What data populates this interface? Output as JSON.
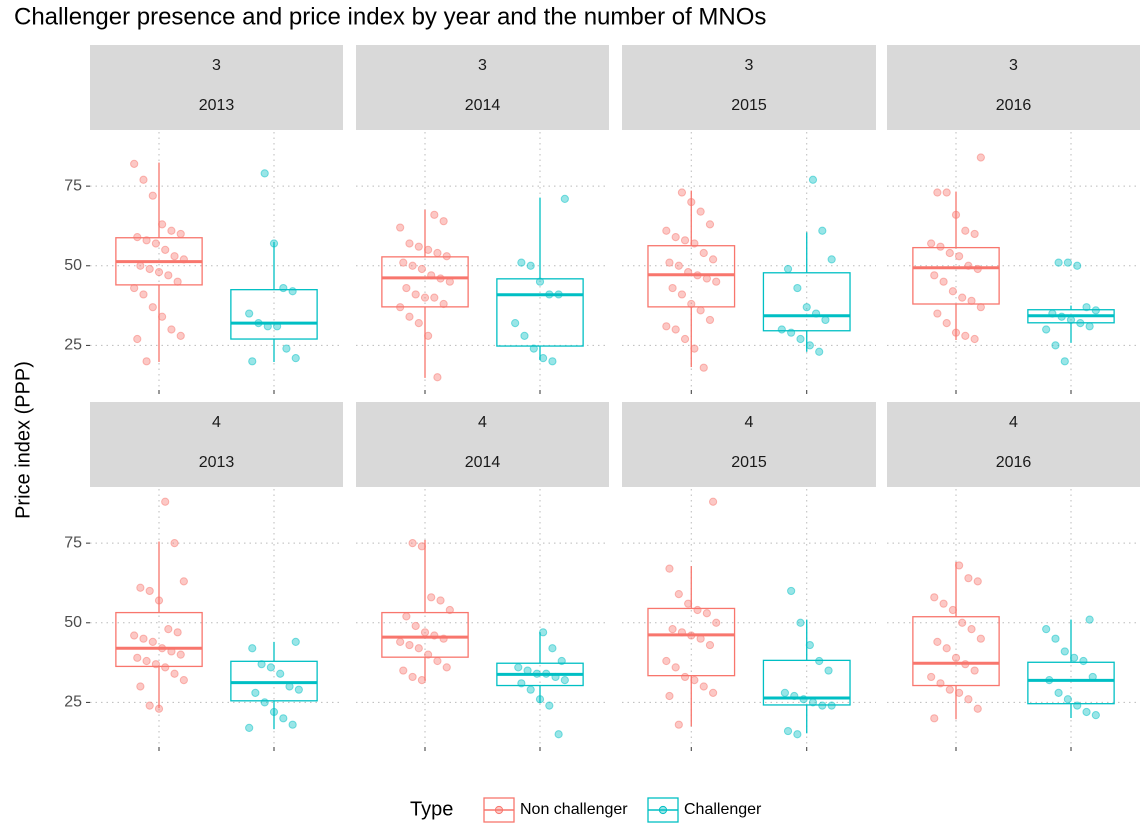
{
  "title": "Challenger presence and price index by year and the number of MNOs",
  "y_label": "Price index (PPP)",
  "legend": {
    "title": "Type",
    "position": "bottom"
  },
  "chart_data": [
    {
      "type": "box",
      "strip": [
        "3",
        "2013"
      ],
      "categories": [
        null,
        null
      ],
      "ylim": [
        11,
        92
      ],
      "yticks": [
        25,
        50,
        75
      ],
      "grid": true,
      "series": [
        {
          "name": "Non challenger",
          "color": "#f8766d",
          "stats": {
            "min": 19.8,
            "q1": 44,
            "median": 51.3,
            "q3": 58.8,
            "max": 82.4
          },
          "points": [
            82,
            77,
            72,
            63,
            61,
            60,
            59,
            58,
            57,
            55,
            53,
            52,
            50,
            49,
            48,
            47,
            45,
            43,
            41,
            37,
            34,
            30,
            28,
            27,
            20
          ]
        },
        {
          "name": "Challenger",
          "color": "#00bfc4",
          "stats": {
            "min": 19.8,
            "q1": 27,
            "median": 32,
            "q3": 42.5,
            "max": 57.5
          },
          "points": [
            79,
            57,
            43,
            42,
            35,
            32,
            31,
            31,
            24,
            21,
            20
          ]
        }
      ]
    },
    {
      "type": "box",
      "strip": [
        "3",
        "2014"
      ],
      "categories": [
        null,
        null
      ],
      "ylim": [
        11,
        92
      ],
      "yticks": [
        25,
        50,
        75
      ],
      "grid": true,
      "series": [
        {
          "name": "Non challenger",
          "color": "#f8766d",
          "stats": {
            "min": 14.8,
            "q1": 37.1,
            "median": 46.2,
            "q3": 52.8,
            "max": 67.6
          },
          "points": [
            66,
            64,
            62,
            57,
            56,
            55,
            54,
            53,
            51,
            50,
            49,
            47,
            46,
            45,
            43,
            41,
            40,
            40,
            38,
            37,
            34,
            32,
            28,
            15
          ]
        },
        {
          "name": "Challenger",
          "color": "#00bfc4",
          "stats": {
            "min": 20.4,
            "q1": 24.8,
            "median": 40.9,
            "q3": 45.9,
            "max": 71.4
          },
          "points": [
            71,
            51,
            50,
            45,
            41,
            41,
            32,
            28,
            24,
            21,
            20
          ]
        }
      ]
    },
    {
      "type": "box",
      "strip": [
        "3",
        "2015"
      ],
      "categories": [
        null,
        null
      ],
      "ylim": [
        11,
        92
      ],
      "yticks": [
        25,
        50,
        75
      ],
      "grid": true,
      "series": [
        {
          "name": "Non challenger",
          "color": "#f8766d",
          "stats": {
            "min": 18.2,
            "q1": 37.1,
            "median": 47.2,
            "q3": 56.3,
            "max": 73.6
          },
          "points": [
            73,
            70,
            67,
            63,
            61,
            59,
            58,
            57,
            54,
            52,
            51,
            50,
            48,
            47,
            46,
            45,
            43,
            41,
            38,
            36,
            33,
            31,
            30,
            27,
            24,
            18
          ]
        },
        {
          "name": "Challenger",
          "color": "#00bfc4",
          "stats": {
            "min": 23,
            "q1": 29.6,
            "median": 34.3,
            "q3": 47.8,
            "max": 60.5
          },
          "points": [
            77,
            61,
            52,
            49,
            43,
            37,
            35,
            33,
            30,
            29,
            27,
            25,
            23
          ]
        }
      ]
    },
    {
      "type": "box",
      "strip": [
        "3",
        "2016"
      ],
      "categories": [
        null,
        null
      ],
      "ylim": [
        11,
        92
      ],
      "yticks": [
        25,
        50,
        75
      ],
      "grid": true,
      "series": [
        {
          "name": "Non challenger",
          "color": "#f8766d",
          "stats": {
            "min": 26.7,
            "q1": 38,
            "median": 49.4,
            "q3": 55.7,
            "max": 73.3
          },
          "points": [
            84,
            73,
            73,
            66,
            61,
            60,
            57,
            56,
            54,
            53,
            50,
            49,
            47,
            45,
            42,
            40,
            39,
            37,
            35,
            32,
            29,
            28,
            27
          ]
        },
        {
          "name": "Challenger",
          "color": "#00bfc4",
          "stats": {
            "min": 25.8,
            "q1": 32.1,
            "median": 34.3,
            "q3": 36.2,
            "max": 37.5
          },
          "points": [
            51,
            51,
            50,
            37,
            36,
            35,
            34,
            33,
            32,
            31,
            30,
            25,
            20
          ]
        }
      ]
    },
    {
      "type": "box",
      "strip": [
        "4",
        "2013"
      ],
      "categories": [
        null,
        null
      ],
      "ylim": [
        11,
        92
      ],
      "yticks": [
        25,
        50,
        75
      ],
      "grid": true,
      "series": [
        {
          "name": "Non challenger",
          "color": "#f8766d",
          "stats": {
            "min": 23.2,
            "q1": 36.3,
            "median": 42,
            "q3": 53.2,
            "max": 75.5
          },
          "points": [
            88,
            75,
            63,
            61,
            60,
            57,
            48,
            47,
            46,
            45,
            44,
            42,
            41,
            40,
            39,
            38,
            37,
            36,
            34,
            32,
            30,
            24,
            23
          ]
        },
        {
          "name": "Challenger",
          "color": "#00bfc4",
          "stats": {
            "min": 16.6,
            "q1": 25.5,
            "median": 31.2,
            "q3": 37.9,
            "max": 44
          },
          "points": [
            44,
            42,
            37,
            36,
            34,
            30,
            29,
            28,
            25,
            22,
            20,
            18,
            17
          ]
        }
      ]
    },
    {
      "type": "box",
      "strip": [
        "4",
        "2014"
      ],
      "categories": [
        null,
        null
      ],
      "ylim": [
        11,
        92
      ],
      "yticks": [
        25,
        50,
        75
      ],
      "grid": true,
      "series": [
        {
          "name": "Non challenger",
          "color": "#f8766d",
          "stats": {
            "min": 31.8,
            "q1": 39.2,
            "median": 45.5,
            "q3": 53.2,
            "max": 76
          },
          "points": [
            75,
            74,
            58,
            57,
            54,
            52,
            49,
            47,
            46,
            45,
            44,
            43,
            42,
            40,
            38,
            36,
            35,
            33,
            32
          ]
        },
        {
          "name": "Challenger",
          "color": "#00bfc4",
          "stats": {
            "min": 24.8,
            "q1": 30.3,
            "median": 33.8,
            "q3": 37.3,
            "max": 47
          },
          "points": [
            47,
            42,
            38,
            36,
            35,
            34,
            34,
            33,
            32,
            31,
            29,
            26,
            24,
            15
          ]
        }
      ]
    },
    {
      "type": "box",
      "strip": [
        "4",
        "2015"
      ],
      "categories": [
        null,
        null
      ],
      "ylim": [
        11,
        92
      ],
      "yticks": [
        25,
        50,
        75
      ],
      "grid": true,
      "series": [
        {
          "name": "Non challenger",
          "color": "#f8766d",
          "stats": {
            "min": 17.5,
            "q1": 33.4,
            "median": 46.2,
            "q3": 54.5,
            "max": 67.8
          },
          "points": [
            88,
            67,
            59,
            56,
            54,
            53,
            50,
            48,
            47,
            46,
            45,
            43,
            38,
            36,
            33,
            32,
            30,
            28,
            27,
            18
          ]
        },
        {
          "name": "Challenger",
          "color": "#00bfc4",
          "stats": {
            "min": 15.3,
            "q1": 24.2,
            "median": 26.4,
            "q3": 38.2,
            "max": 51
          },
          "points": [
            60,
            50,
            43,
            38,
            35,
            28,
            27,
            26,
            25,
            24,
            24,
            16,
            15
          ]
        }
      ]
    },
    {
      "type": "box",
      "strip": [
        "4",
        "2016"
      ],
      "categories": [
        null,
        null
      ],
      "ylim": [
        11,
        92
      ],
      "yticks": [
        25,
        50,
        75
      ],
      "grid": true,
      "series": [
        {
          "name": "Non challenger",
          "color": "#f8766d",
          "stats": {
            "min": 19.7,
            "q1": 30.3,
            "median": 37.3,
            "q3": 51.9,
            "max": 69.1
          },
          "points": [
            68,
            64,
            63,
            58,
            56,
            54,
            50,
            48,
            45,
            44,
            42,
            39,
            37,
            35,
            33,
            31,
            29,
            28,
            26,
            23,
            20
          ]
        },
        {
          "name": "Challenger",
          "color": "#00bfc4",
          "stats": {
            "min": 20.1,
            "q1": 24.6,
            "median": 31.9,
            "q3": 37.6,
            "max": 51
          },
          "points": [
            51,
            48,
            45,
            41,
            39,
            38,
            33,
            32,
            28,
            26,
            24,
            22,
            21
          ]
        }
      ]
    }
  ]
}
